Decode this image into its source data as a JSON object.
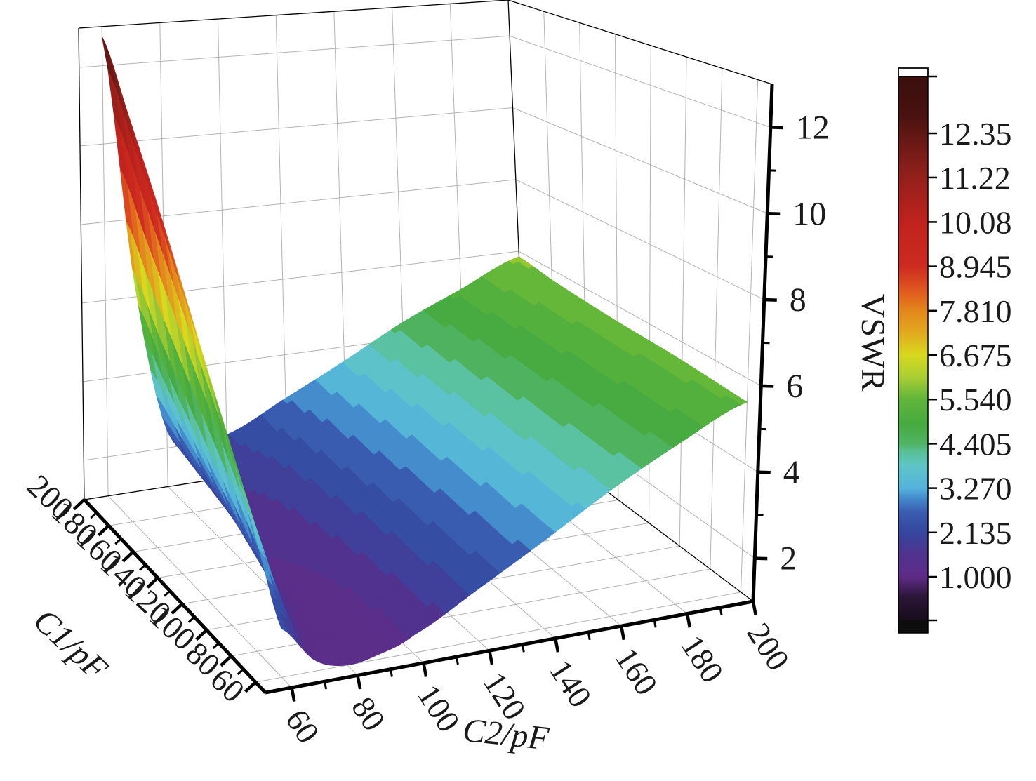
{
  "figure": {
    "background": "#ffffff",
    "description": "3D surface plot of VSWR versus capacitances C1 and C2"
  },
  "chart_data": {
    "type": "surface",
    "title": "",
    "xlabel": "C2/pF",
    "ylabel": "C1/pF",
    "zlabel": "VSWR",
    "x_ticks": [
      60,
      80,
      100,
      120,
      140,
      160,
      180,
      200
    ],
    "x_minor_ticks": [
      70,
      90,
      110,
      130,
      150,
      170,
      190
    ],
    "y_ticks": [
      200,
      180,
      160,
      140,
      120,
      100,
      80,
      60
    ],
    "y_minor_ticks": [
      70,
      90,
      110,
      130,
      150,
      170,
      190
    ],
    "z_ticks": [
      2,
      4,
      6,
      8,
      10,
      12
    ],
    "z_minor_ticks": [
      3,
      5,
      7,
      9,
      11
    ],
    "x_range": [
      52,
      200
    ],
    "y_range": [
      52,
      200
    ],
    "z_range": [
      1,
      13
    ],
    "grid": true,
    "c2_values": [
      60,
      70,
      80,
      90,
      100,
      120,
      140,
      160,
      180,
      200
    ],
    "c1_values": [
      60,
      80,
      100,
      120,
      140,
      160,
      180,
      200
    ],
    "vswr_grid": [
      [
        2.1,
        1.25,
        1.0,
        1.12,
        1.4,
        2.2,
        3.05,
        3.95,
        4.75,
        5.45
      ],
      [
        3.6,
        1.65,
        1.08,
        1.18,
        1.45,
        2.25,
        3.1,
        4.0,
        4.8,
        5.5
      ],
      [
        5.1,
        2.2,
        1.22,
        1.26,
        1.52,
        2.3,
        3.18,
        4.05,
        4.85,
        5.55
      ],
      [
        6.65,
        2.85,
        1.42,
        1.36,
        1.6,
        2.38,
        3.25,
        4.1,
        4.9,
        5.58
      ],
      [
        8.2,
        3.55,
        1.7,
        1.5,
        1.7,
        2.48,
        3.32,
        4.18,
        4.95,
        5.6
      ],
      [
        9.75,
        4.35,
        1.95,
        1.65,
        1.82,
        2.58,
        3.42,
        4.25,
        5.0,
        5.65
      ],
      [
        11.25,
        5.25,
        2.18,
        1.85,
        1.96,
        2.7,
        3.52,
        4.35,
        5.08,
        5.72
      ],
      [
        12.75,
        6.3,
        2.45,
        2.05,
        2.12,
        2.85,
        3.62,
        4.45,
        5.15,
        5.85
      ]
    ],
    "surface_min": 1.0,
    "surface_max": 12.75,
    "color_levels": 32,
    "colormap": [
      [
        0.0,
        "#1a0d20"
      ],
      [
        0.5,
        "#2c1739"
      ],
      [
        1.0,
        "#5e2c87"
      ],
      [
        1.6,
        "#50338f"
      ],
      [
        2.135,
        "#35479f"
      ],
      [
        2.65,
        "#3a5cb0"
      ],
      [
        3.0,
        "#4489cb"
      ],
      [
        3.27,
        "#54b2dc"
      ],
      [
        3.85,
        "#5fc5c6"
      ],
      [
        4.2,
        "#58c096"
      ],
      [
        4.405,
        "#50b464"
      ],
      [
        4.9,
        "#46aa3f"
      ],
      [
        5.54,
        "#5fb53b"
      ],
      [
        6.1,
        "#a8cd33"
      ],
      [
        6.675,
        "#d8d91f"
      ],
      [
        7.3,
        "#e2a51e"
      ],
      [
        7.81,
        "#e3871c"
      ],
      [
        8.3,
        "#e05a1f"
      ],
      [
        8.945,
        "#cd2b20"
      ],
      [
        10.08,
        "#c0221d"
      ],
      [
        11.22,
        "#93201b"
      ],
      [
        12.35,
        "#5f1713"
      ],
      [
        12.75,
        "#4a1210"
      ],
      [
        13.8,
        "#3a0f0d"
      ]
    ],
    "colorbar": {
      "labels": [
        "12.35",
        "11.22",
        "10.08",
        "8.945",
        "7.810",
        "6.675",
        "5.540",
        "4.405",
        "3.270",
        "2.135",
        "1.000"
      ],
      "values": [
        12.35,
        11.22,
        10.08,
        8.945,
        7.81,
        6.675,
        5.54,
        4.405,
        3.27,
        2.135,
        1.0
      ],
      "top_cap_color": "#ffffff",
      "bottom_cap_color": "#0d0d0d"
    }
  }
}
